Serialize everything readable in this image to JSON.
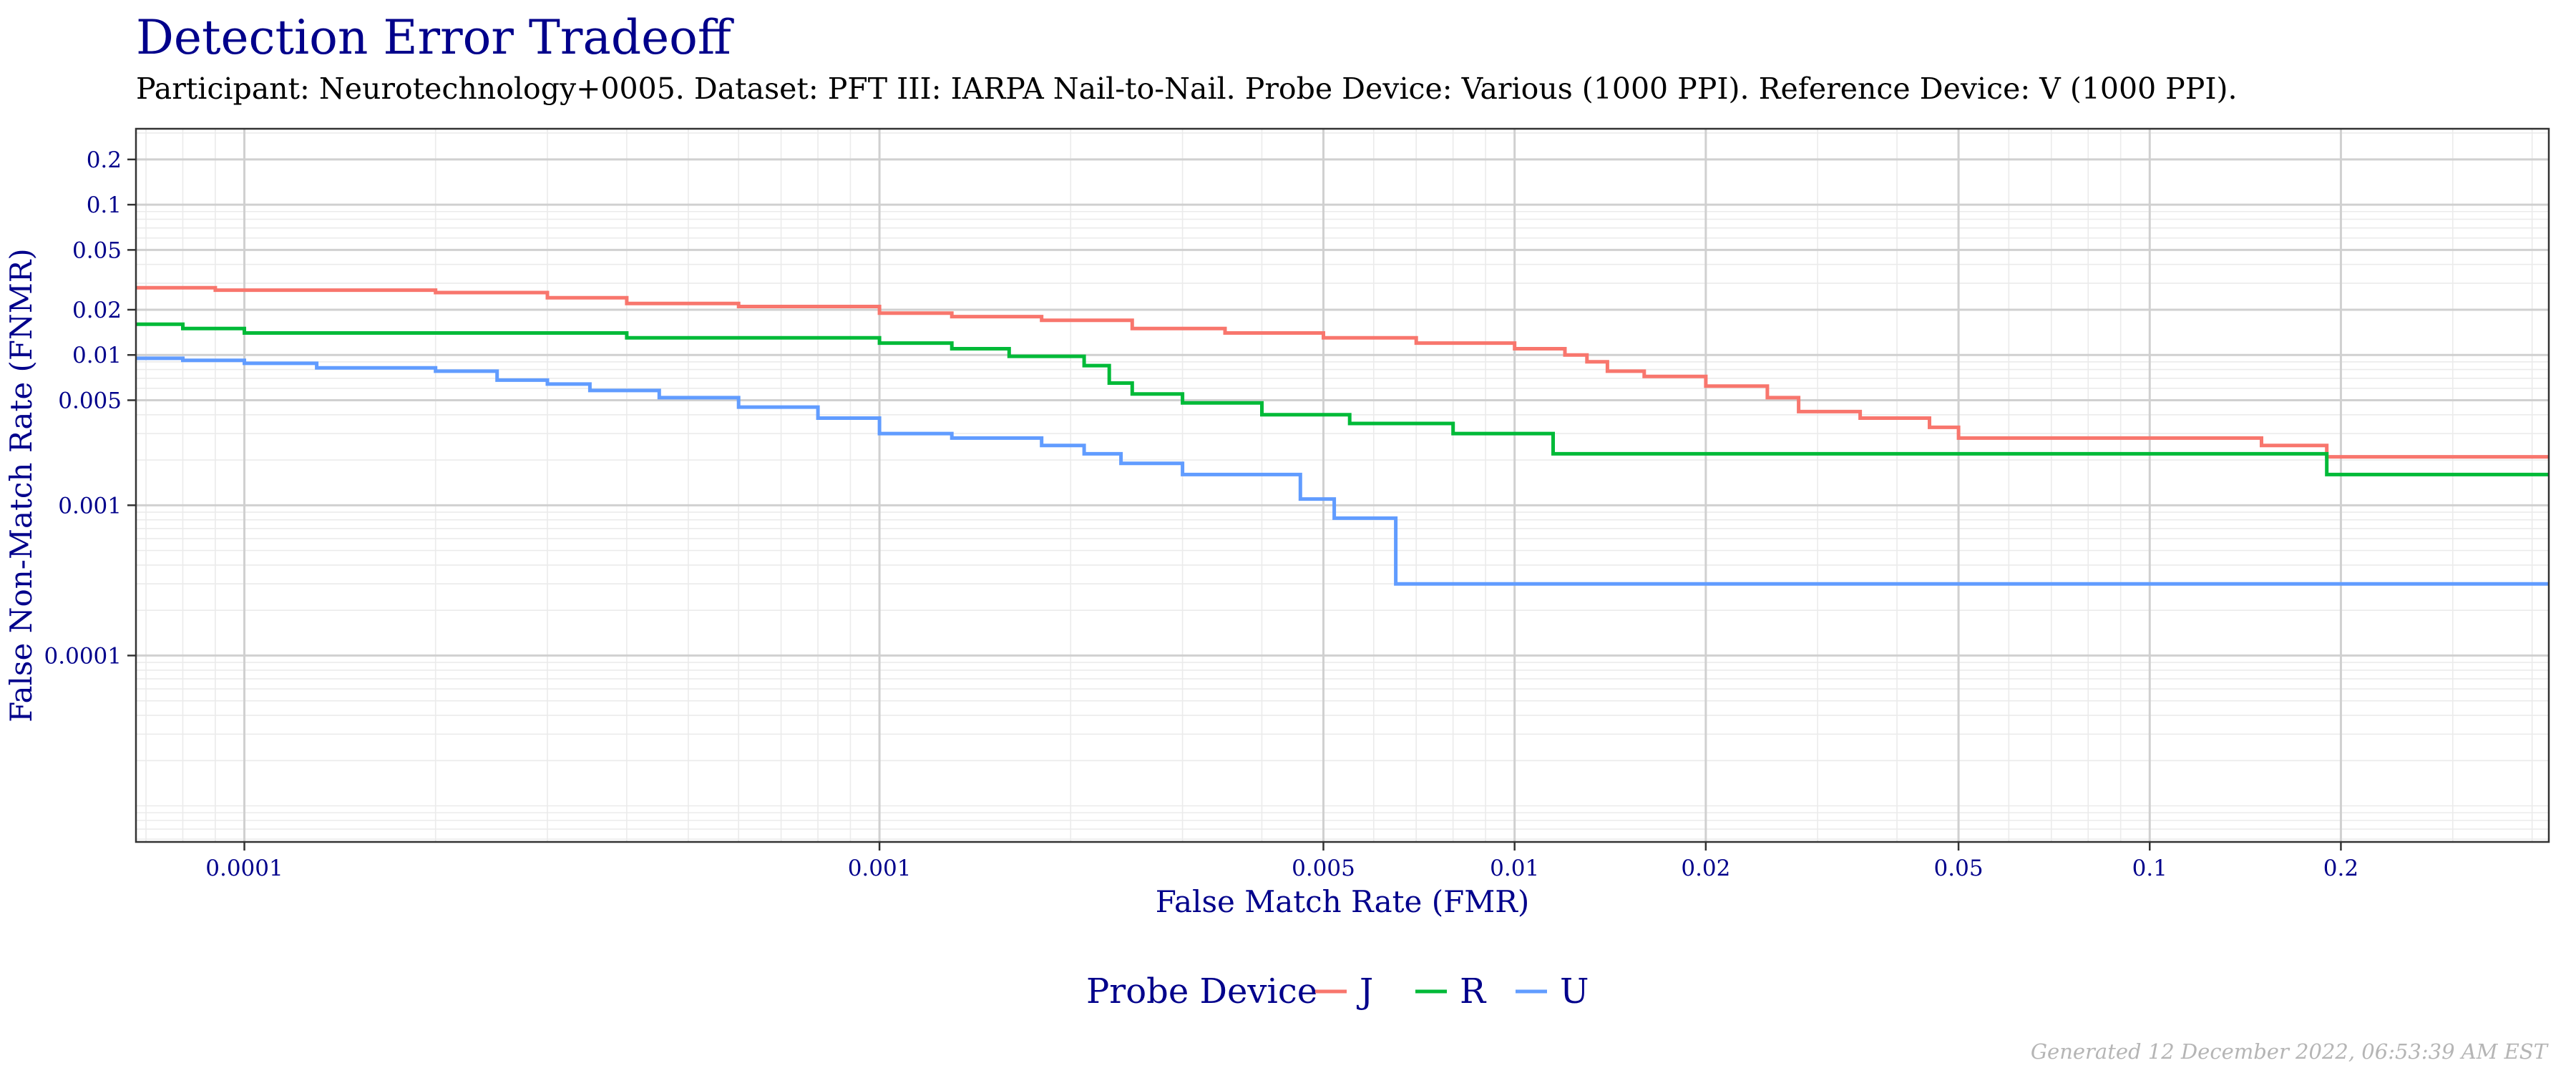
{
  "title": "Detection Error Tradeoff",
  "subtitle": "Participant: Neurotechnology+0005. Dataset: PFT III: IARPA Nail-to-Nail. Probe Device: Various (1000 PPI). Reference Device: V (1000 PPI).",
  "footer": "Generated 12 December 2022, 06:53:39 AM EST",
  "chart_data": {
    "type": "line",
    "title": "Detection Error Tradeoff",
    "xlabel": "False Match Rate (FMR)",
    "ylabel": "False Non-Match Rate (FNMR)",
    "xscale": "log",
    "yscale": "log",
    "xlim": [
      6.75e-05,
      0.425
    ],
    "ylim": [
      5.75e-06,
      0.32
    ],
    "x_ticks": [
      0.0001,
      0.001,
      0.005,
      0.01,
      0.02,
      0.05,
      0.1,
      0.2
    ],
    "x_tick_labels": [
      "0.0001",
      "0.001",
      "0.005",
      "0.01",
      "0.02",
      "0.05",
      "0.1",
      "0.2"
    ],
    "y_ticks": [
      0.0001,
      0.001,
      0.005,
      0.01,
      0.02,
      0.05,
      0.1,
      0.2
    ],
    "y_tick_labels": [
      "0.0001",
      "0.001",
      "0.005",
      "0.01",
      "0.02",
      "0.05",
      "0.1",
      "0.2"
    ],
    "grid": true,
    "legend": {
      "title": "Probe Device",
      "placement": "bottom"
    },
    "series": [
      {
        "name": "J",
        "color": "#f8766d",
        "points": [
          [
            6.75e-05,
            0.028
          ],
          [
            9e-05,
            0.027
          ],
          [
            0.0002,
            0.026
          ],
          [
            0.0003,
            0.024
          ],
          [
            0.0004,
            0.022
          ],
          [
            0.0006,
            0.021
          ],
          [
            0.001,
            0.019
          ],
          [
            0.0013,
            0.018
          ],
          [
            0.0018,
            0.017
          ],
          [
            0.0025,
            0.015
          ],
          [
            0.0035,
            0.014
          ],
          [
            0.005,
            0.013
          ],
          [
            0.007,
            0.012
          ],
          [
            0.01,
            0.011
          ],
          [
            0.012,
            0.01
          ],
          [
            0.013,
            0.009
          ],
          [
            0.014,
            0.0078
          ],
          [
            0.016,
            0.0072
          ],
          [
            0.02,
            0.0062
          ],
          [
            0.025,
            0.0052
          ],
          [
            0.028,
            0.0042
          ],
          [
            0.035,
            0.0038
          ],
          [
            0.045,
            0.0033
          ],
          [
            0.05,
            0.0028
          ],
          [
            0.15,
            0.0025
          ],
          [
            0.19,
            0.0021
          ],
          [
            0.425,
            0.0021
          ]
        ]
      },
      {
        "name": "R",
        "color": "#00ba38",
        "points": [
          [
            6.75e-05,
            0.016
          ],
          [
            8e-05,
            0.015
          ],
          [
            0.0001,
            0.014
          ],
          [
            0.0004,
            0.013
          ],
          [
            0.001,
            0.012
          ],
          [
            0.0013,
            0.011
          ],
          [
            0.0016,
            0.0098
          ],
          [
            0.0021,
            0.0085
          ],
          [
            0.0023,
            0.0065
          ],
          [
            0.0025,
            0.0055
          ],
          [
            0.003,
            0.0048
          ],
          [
            0.004,
            0.004
          ],
          [
            0.0055,
            0.0035
          ],
          [
            0.008,
            0.003
          ],
          [
            0.0115,
            0.0022
          ],
          [
            0.19,
            0.0016
          ],
          [
            0.425,
            0.0016
          ]
        ]
      },
      {
        "name": "U",
        "color": "#619cff",
        "points": [
          [
            6.75e-05,
            0.0095
          ],
          [
            8e-05,
            0.0092
          ],
          [
            0.0001,
            0.0088
          ],
          [
            0.00013,
            0.0082
          ],
          [
            0.0002,
            0.0078
          ],
          [
            0.00025,
            0.0068
          ],
          [
            0.0003,
            0.0064
          ],
          [
            0.00035,
            0.0058
          ],
          [
            0.00045,
            0.0052
          ],
          [
            0.0006,
            0.0045
          ],
          [
            0.0008,
            0.0038
          ],
          [
            0.001,
            0.003
          ],
          [
            0.0013,
            0.0028
          ],
          [
            0.0018,
            0.0025
          ],
          [
            0.0021,
            0.0022
          ],
          [
            0.0024,
            0.0019
          ],
          [
            0.003,
            0.0016
          ],
          [
            0.0046,
            0.0011
          ],
          [
            0.0052,
            0.00082
          ],
          [
            0.0065,
            0.0003
          ],
          [
            0.425,
            0.0003
          ]
        ]
      }
    ]
  }
}
